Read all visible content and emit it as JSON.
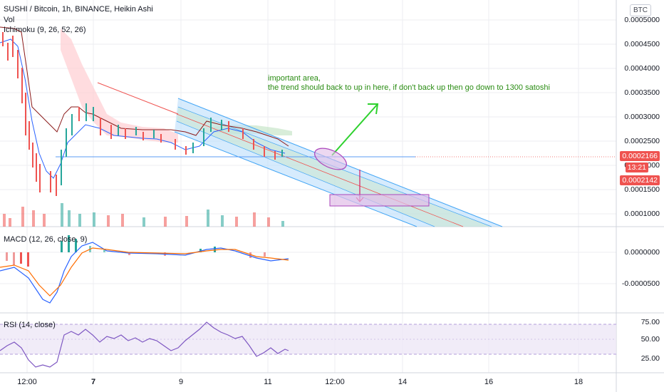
{
  "header": {
    "title": "SUSHI / Bitcoin, 1h, BINANCE, Heikin Ashi",
    "vol_label": "Vol",
    "ichimoku_label": "Ichimoku (9, 26, 52, 26)",
    "currency_button": "BTC"
  },
  "price_axis": {
    "labels": [
      "0.0005000",
      "0.0004500",
      "0.0004000",
      "0.0003500",
      "0.0003000",
      "0.0002500",
      "0.0001500",
      "0.0001000"
    ],
    "partial_label": "0.0002000",
    "current_price": "0.0002166",
    "countdown": "13:21",
    "support_price": "0.0002142"
  },
  "macd": {
    "label": "MACD (12, 26, close, 9)",
    "axis": [
      "0.0000000",
      "-0.0000500"
    ]
  },
  "rsi": {
    "label": "RSI (14, close)",
    "axis": [
      "75.00",
      "50.00",
      "25.00"
    ]
  },
  "time_axis": {
    "labels": [
      "12:00",
      "7",
      "9",
      "11",
      "12:00",
      "14",
      "16",
      "18"
    ]
  },
  "annotation": {
    "line1": "important area,",
    "line2": "the trend should back to up in here, if don't back up then go down to 1300 satoshi"
  },
  "colors": {
    "up": "#26a69a",
    "down": "#ef5350",
    "badge_red": "#ef5350",
    "channel_fill": "#bbdefb",
    "channel_line": "#42a5f5",
    "annotation_green": "#2a8c13",
    "ellipse": "#ce93d8",
    "rsi_band": "#ede7f6"
  }
}
